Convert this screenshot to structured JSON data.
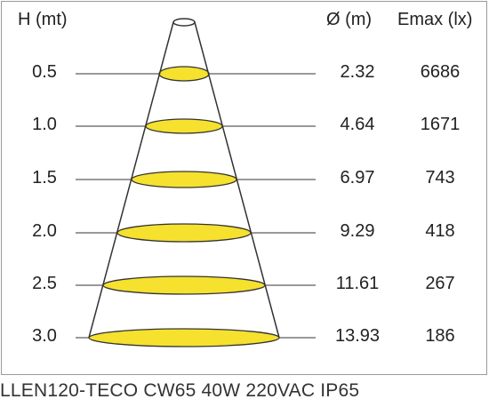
{
  "headers": {
    "height": "H (mt)",
    "diameter": "Ø (m)",
    "emax": "Emax (lx)"
  },
  "rows": [
    {
      "h": "0.5",
      "d": "2.32",
      "e": "6686"
    },
    {
      "h": "1.0",
      "d": "4.64",
      "e": "1671"
    },
    {
      "h": "1.5",
      "d": "6.97",
      "e": "743"
    },
    {
      "h": "2.0",
      "d": "9.29",
      "e": "418"
    },
    {
      "h": "2.5",
      "d": "11.61",
      "e": "267"
    },
    {
      "h": "3.0",
      "d": "13.93",
      "e": "186"
    }
  ],
  "caption": "LLEN120-TECO CW65 40W 220VAC IP65",
  "colors": {
    "beam_fill": "#f5e12e",
    "line": "#333333",
    "frame": "#9a9a9a"
  }
}
